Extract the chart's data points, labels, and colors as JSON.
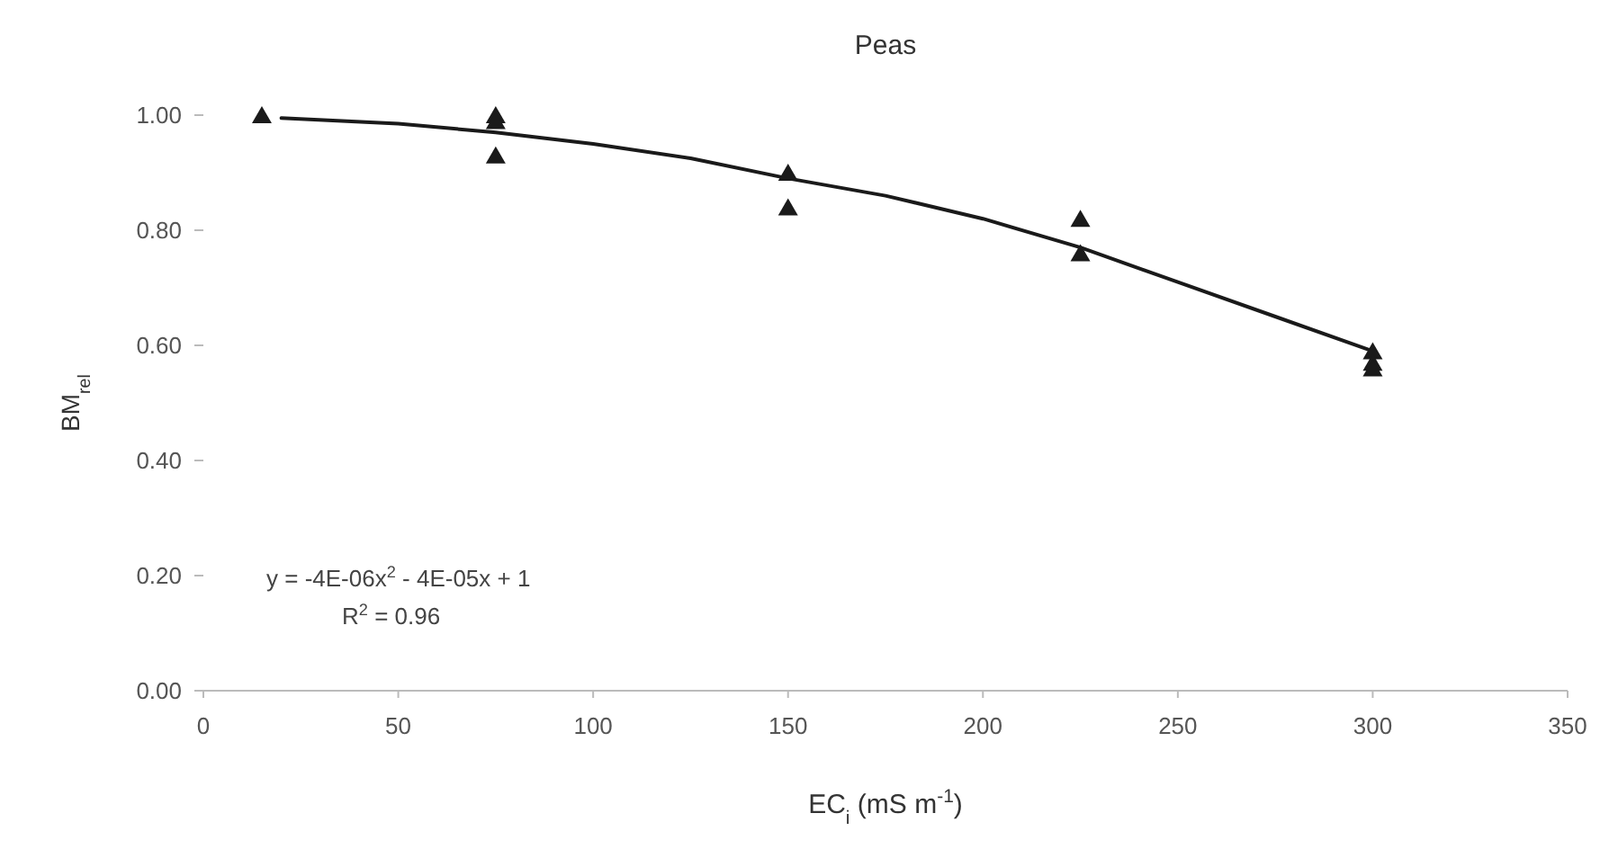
{
  "chart_data": {
    "type": "scatter",
    "title": "Peas",
    "xlabel": "EC$_{i}$ (mS m$^{-1}$)",
    "ylabel": "BM$_{rel}$",
    "xlim": [
      0,
      350
    ],
    "xticks": [
      0,
      50,
      100,
      150,
      200,
      250,
      300,
      350
    ],
    "ylim": [
      0,
      1
    ],
    "yticks": [
      {
        "value": 0,
        "label": "0.00"
      },
      {
        "value": 0.2,
        "label": "0.20"
      },
      {
        "value": 0.4,
        "label": "0.40"
      },
      {
        "value": 0.6,
        "label": "0.60"
      },
      {
        "value": 0.8,
        "label": "0.80"
      },
      {
        "value": 1,
        "label": "1.00"
      }
    ],
    "grid": false,
    "marker": "triangle",
    "series": [
      {
        "color": "#1a1a1a",
        "x": [
          15,
          75,
          75,
          75,
          150,
          150,
          225,
          225,
          300,
          300,
          300
        ],
        "values": [
          1.0,
          1.0,
          0.99,
          0.93,
          0.9,
          0.84,
          0.82,
          0.76,
          0.59,
          0.57,
          0.56
        ]
      },
      {
        "type": "line",
        "color": "#1a1a1a",
        "marker": "none",
        "line_style": "solid",
        "x": [
          20,
          50,
          75,
          100,
          125,
          150,
          175,
          200,
          225,
          250,
          275,
          300
        ],
        "values": [
          0.995,
          0.985,
          0.97,
          0.95,
          0.925,
          0.89,
          0.86,
          0.82,
          0.77,
          0.71,
          0.65,
          0.59
        ]
      }
    ],
    "annotations": [
      "y = -4E-06x$^{2}$ - 4E-05x + 1",
      "R$^{2}$ = 0.96"
    ]
  }
}
